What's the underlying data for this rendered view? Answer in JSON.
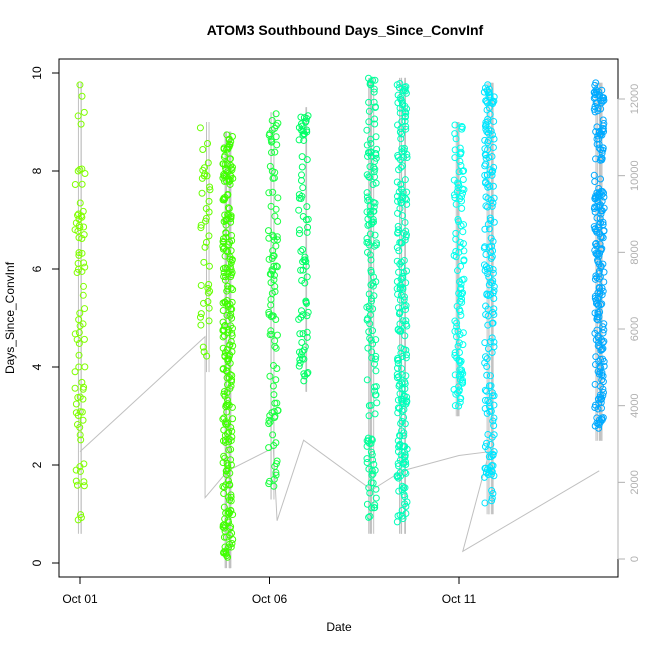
{
  "chart_data": {
    "type": "scatter",
    "title": "ATOM3 Southbound Days_Since_ConvInf",
    "xlabel": "Date",
    "ylabel": "Days_Since_ConvInf",
    "ylim": [
      0,
      10
    ],
    "yticks": [
      0,
      2,
      4,
      6,
      8,
      10
    ],
    "y2lim": [
      0,
      12000
    ],
    "y2ticks": [
      0,
      2000,
      4000,
      6000,
      8000,
      10000,
      12000
    ],
    "x_axis": {
      "unit": "date",
      "range": [
        "Oct 01",
        "Oct 15"
      ],
      "ticks": [
        {
          "date": "Oct 01",
          "label": "Oct 01"
        },
        {
          "date": "Oct 06",
          "label": "Oct 06"
        },
        {
          "date": "Oct 11",
          "label": "Oct 11"
        }
      ]
    },
    "clusters": [
      {
        "date": "Oct 01",
        "color": "#80ff00",
        "n": 80,
        "ymin": 0.8,
        "ymax": 9.8
      },
      {
        "date": "Oct 04.3",
        "color": "#66ff00",
        "n": 40,
        "ymin": 4.1,
        "ymax": 9.0
      },
      {
        "date": "Oct 04.9",
        "color": "#40ff00",
        "n": 260,
        "ymin": 0.1,
        "ymax": 8.8
      },
      {
        "date": "Oct 06.1",
        "color": "#1aff40",
        "n": 100,
        "ymin": 1.5,
        "ymax": 9.2
      },
      {
        "date": "Oct 06.9",
        "color": "#00ff66",
        "n": 80,
        "ymin": 3.7,
        "ymax": 9.3
      },
      {
        "date": "Oct 08.7",
        "color": "#00ff99",
        "n": 150,
        "ymin": 0.8,
        "ymax": 9.9
      },
      {
        "date": "Oct 09.5",
        "color": "#00ffbb",
        "n": 220,
        "ymin": 0.8,
        "ymax": 9.9
      },
      {
        "date": "Oct 11.0",
        "color": "#00ffee",
        "n": 110,
        "ymin": 3.2,
        "ymax": 9.0
      },
      {
        "date": "Oct 11.8",
        "color": "#00e5ff",
        "n": 180,
        "ymin": 1.2,
        "ymax": 9.8
      },
      {
        "date": "Oct 14.7",
        "color": "#00aaff",
        "n": 230,
        "ymin": 2.7,
        "ymax": 9.8
      }
    ],
    "cumulative_line": {
      "axis": "right",
      "color": "#c0c0c0",
      "points": [
        [
          "Oct 01",
          2800
        ],
        [
          "Oct 04.3",
          5800
        ],
        [
          "Oct 04.3",
          1600
        ],
        [
          "Oct 04.9",
          2300
        ],
        [
          "Oct 06.1",
          2900
        ],
        [
          "Oct 06.2",
          1000
        ],
        [
          "Oct 06.9",
          3100
        ],
        [
          "Oct 08.7",
          1800
        ],
        [
          "Oct 09.5",
          2300
        ],
        [
          "Oct 11.0",
          2700
        ],
        [
          "Oct 11.8",
          2800
        ],
        [
          "Oct 11.1",
          200
        ],
        [
          "Oct 14.7",
          2300
        ]
      ]
    }
  }
}
